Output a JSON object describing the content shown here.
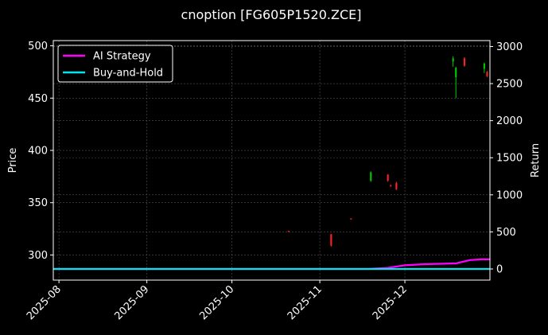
{
  "chart_data": {
    "type": "line",
    "title": "cnoption [FG605P1520.ZCE]",
    "xlabel": "",
    "ylabel_left": "Price",
    "ylabel_right": "Return",
    "x_axis_type": "date",
    "xlim": [
      "2025-07-30",
      "2025-12-31"
    ],
    "ylim_left": [
      276,
      505
    ],
    "ylim_right": [
      -150,
      3080
    ],
    "x_ticks": [
      "2025-08",
      "2025-09",
      "2025-10",
      "2025-11",
      "2025-12"
    ],
    "y_ticks_left": [
      300,
      350,
      400,
      450,
      500
    ],
    "y_ticks_right": [
      0,
      500,
      1000,
      1500,
      2000,
      2500,
      3000
    ],
    "grid": true,
    "legend_position": "top-left",
    "colors": {
      "background": "#000000",
      "axes": "#ffffff",
      "grid": "#555555",
      "up_candle": "#00c800",
      "down_candle": "#ff2020",
      "strategy": "#ff00ff",
      "buy_hold": "#00e5ee"
    },
    "candles": [
      {
        "date": "2025-10-21",
        "open": 323.0,
        "high": 323.0,
        "low": 322.0,
        "close": 322.0
      },
      {
        "date": "2025-11-05",
        "open": 320.0,
        "high": 320.0,
        "low": 308.0,
        "close": 309.0
      },
      {
        "date": "2025-11-12",
        "open": 335.0,
        "high": 335.0,
        "low": 334.0,
        "close": 334.0
      },
      {
        "date": "2025-11-19",
        "open": 371.0,
        "high": 380.0,
        "low": 370.0,
        "close": 379.0
      },
      {
        "date": "2025-11-25",
        "open": 377.0,
        "high": 377.0,
        "low": 370.0,
        "close": 371.0
      },
      {
        "date": "2025-11-26",
        "open": 367.0,
        "high": 367.0,
        "low": 365.0,
        "close": 366.0
      },
      {
        "date": "2025-11-28",
        "open": 369.0,
        "high": 370.0,
        "low": 362.0,
        "close": 363.0
      },
      {
        "date": "2025-12-18",
        "open": 485.0,
        "high": 490.0,
        "low": 480.0,
        "close": 488.0
      },
      {
        "date": "2025-12-19",
        "open": 470.0,
        "high": 480.0,
        "low": 450.0,
        "close": 479.0
      },
      {
        "date": "2025-12-22",
        "open": 488.0,
        "high": 489.0,
        "low": 480.0,
        "close": 481.0
      },
      {
        "date": "2025-12-29",
        "open": 478.0,
        "high": 484.0,
        "low": 474.0,
        "close": 483.0
      },
      {
        "date": "2025-12-30",
        "open": 475.0,
        "high": 476.0,
        "low": 470.0,
        "close": 471.0
      }
    ],
    "series": [
      {
        "name": "AI Strategy",
        "axis": "right",
        "points": [
          {
            "x": "2025-07-30",
            "y": 0
          },
          {
            "x": "2025-11-18",
            "y": 0
          },
          {
            "x": "2025-11-25",
            "y": 15
          },
          {
            "x": "2025-12-01",
            "y": 50
          },
          {
            "x": "2025-12-08",
            "y": 65
          },
          {
            "x": "2025-12-19",
            "y": 75
          },
          {
            "x": "2025-12-24",
            "y": 120
          },
          {
            "x": "2025-12-28",
            "y": 130
          },
          {
            "x": "2025-12-31",
            "y": 130
          }
        ]
      },
      {
        "name": "Buy-and-Hold",
        "axis": "right",
        "points": [
          {
            "x": "2025-07-30",
            "y": 0
          },
          {
            "x": "2025-12-31",
            "y": 0
          }
        ]
      }
    ]
  }
}
